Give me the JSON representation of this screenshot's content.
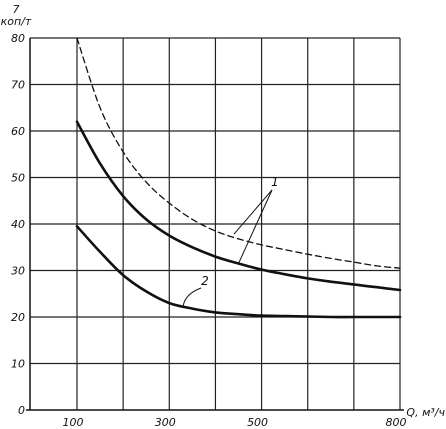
{
  "chart_data": {
    "type": "line",
    "ylabel": "7\nкоп/т",
    "xlabel": "Q, м³/ч",
    "xlim": [
      100,
      800
    ],
    "ylim": [
      0,
      80
    ],
    "x_ticks": [
      100,
      300,
      500,
      800
    ],
    "y_ticks": [
      0,
      10,
      20,
      30,
      40,
      50,
      60,
      70,
      80
    ],
    "grid": true,
    "series": [
      {
        "label": "1",
        "style": "dashed",
        "x": [
          100,
          150,
          200,
          250,
          300,
          350,
          400,
          450,
          500,
          550,
          600,
          650,
          700,
          750,
          800
        ],
        "y": [
          80,
          65,
          55.5,
          49,
          44.5,
          41,
          38.5,
          36.8,
          35.5,
          34.5,
          33.5,
          32.6,
          31.8,
          31,
          30.5
        ]
      },
      {
        "label": "1",
        "style": "solid",
        "x": [
          100,
          150,
          200,
          250,
          300,
          350,
          400,
          450,
          500,
          550,
          600,
          650,
          700,
          750,
          800
        ],
        "y": [
          62,
          53,
          46,
          41,
          37.5,
          35,
          33,
          31.5,
          30.2,
          29.2,
          28.3,
          27.6,
          27,
          26.4,
          25.8
        ]
      },
      {
        "label": "2",
        "style": "solid",
        "x": [
          100,
          150,
          200,
          250,
          300,
          350,
          400,
          450,
          500,
          550,
          600,
          650,
          700,
          750,
          800
        ],
        "y": [
          39.5,
          34,
          29,
          25.5,
          23,
          21.8,
          21,
          20.6,
          20.3,
          20.2,
          20.1,
          20,
          20,
          20,
          20
        ]
      }
    ],
    "annotations": [
      {
        "text": "1",
        "target_series": [
          0,
          1
        ]
      },
      {
        "text": "2",
        "target_series": [
          2
        ]
      }
    ]
  }
}
